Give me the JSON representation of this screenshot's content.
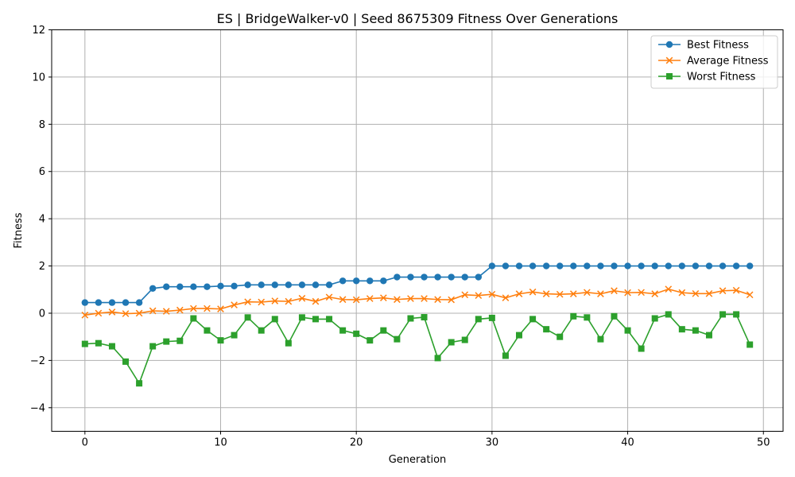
{
  "chart_data": {
    "type": "line",
    "title": "ES | BridgeWalker-v0 | Seed 8675309 Fitness Over Generations",
    "xlabel": "Generation",
    "ylabel": "Fitness",
    "xlim": [
      -2.45,
      51.45
    ],
    "ylim": [
      -5,
      12
    ],
    "xticks": [
      0,
      10,
      20,
      30,
      40,
      50
    ],
    "yticks": [
      -4,
      -2,
      0,
      2,
      4,
      6,
      8,
      10,
      12
    ],
    "grid": true,
    "legend_position": "top-right",
    "x": [
      0,
      1,
      2,
      3,
      4,
      5,
      6,
      7,
      8,
      9,
      10,
      11,
      12,
      13,
      14,
      15,
      16,
      17,
      18,
      19,
      20,
      21,
      22,
      23,
      24,
      25,
      26,
      27,
      28,
      29,
      30,
      31,
      32,
      33,
      34,
      35,
      36,
      37,
      38,
      39,
      40,
      41,
      42,
      43,
      44,
      45,
      46,
      47,
      48,
      49
    ],
    "series": [
      {
        "name": "Best Fitness",
        "color": "#1f77b4",
        "marker": "circle",
        "values": [
          0.45,
          0.45,
          0.45,
          0.45,
          0.45,
          1.05,
          1.12,
          1.12,
          1.12,
          1.12,
          1.15,
          1.15,
          1.2,
          1.2,
          1.2,
          1.2,
          1.2,
          1.2,
          1.2,
          1.37,
          1.37,
          1.37,
          1.37,
          1.53,
          1.53,
          1.53,
          1.53,
          1.53,
          1.53,
          1.53,
          2.0,
          2.0,
          2.0,
          2.0,
          2.0,
          2.0,
          2.0,
          2.0,
          2.0,
          2.0,
          2.0,
          2.0,
          2.0,
          2.0,
          2.0,
          2.0,
          2.0,
          2.0,
          2.0,
          2.0
        ]
      },
      {
        "name": "Average Fitness",
        "color": "#ff7f0e",
        "marker": "x",
        "values": [
          -0.08,
          0.0,
          0.05,
          -0.02,
          0.0,
          0.1,
          0.08,
          0.13,
          0.2,
          0.2,
          0.18,
          0.35,
          0.48,
          0.47,
          0.52,
          0.5,
          0.63,
          0.5,
          0.68,
          0.58,
          0.57,
          0.62,
          0.65,
          0.58,
          0.62,
          0.62,
          0.58,
          0.57,
          0.78,
          0.75,
          0.8,
          0.65,
          0.82,
          0.9,
          0.82,
          0.8,
          0.82,
          0.88,
          0.82,
          0.95,
          0.87,
          0.88,
          0.82,
          1.02,
          0.87,
          0.83,
          0.83,
          0.95,
          0.97,
          0.78
        ]
      },
      {
        "name": "Worst Fitness",
        "color": "#2ca02c",
        "marker": "square",
        "values": [
          -1.3,
          -1.27,
          -1.4,
          -2.05,
          -2.97,
          -1.4,
          -1.2,
          -1.17,
          -0.22,
          -0.73,
          -1.15,
          -0.93,
          -0.18,
          -0.73,
          -0.25,
          -1.27,
          -0.18,
          -0.25,
          -0.25,
          -0.73,
          -0.87,
          -1.15,
          -0.73,
          -1.1,
          -0.22,
          -0.17,
          -1.9,
          -1.23,
          -1.13,
          -0.25,
          -0.2,
          -1.8,
          -0.93,
          -0.25,
          -0.68,
          -1.0,
          -0.13,
          -0.18,
          -1.1,
          -0.13,
          -0.73,
          -1.5,
          -0.22,
          -0.05,
          -0.68,
          -0.73,
          -0.93,
          -0.05,
          -0.05,
          -1.33
        ]
      }
    ]
  }
}
